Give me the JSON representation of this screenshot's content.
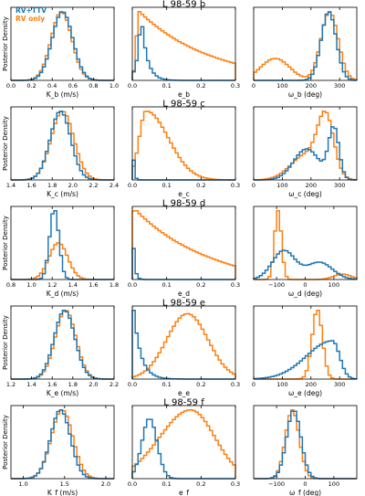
{
  "colors": {
    "rv_ttv": "#1f77b4",
    "rv_only": "#ff7f0e"
  },
  "legend": {
    "rv_ttv": "RV+TTV",
    "rv_only": "RV only"
  },
  "ylabel": "Posterior Density",
  "panel_titles": [
    "L 98-59 b",
    "L 98-59 c",
    "L 98-59 d",
    "L 98-59 e",
    "L 98-59 f"
  ],
  "chart_data": {
    "type": "histogram-grid",
    "legend_position": "top-left",
    "rows": [
      {
        "title": "L 98-59 b",
        "panels": [
          {
            "xlabel": "K_b (m/s)",
            "xlim": [
              0.0,
              1.0
            ],
            "xticks": [
              "0.0",
              "0.2",
              "0.4",
              "0.6",
              "0.8",
              "1.0"
            ],
            "xtick_values": [
              0.0,
              0.2,
              0.4,
              0.6,
              0.8,
              1.0
            ],
            "series": [
              {
                "name": "RV+TTV",
                "shape": "normal",
                "mu": 0.5,
                "sigma": 0.1
              },
              {
                "name": "RV only",
                "shape": "normal",
                "mu": 0.49,
                "sigma": 0.1
              }
            ]
          },
          {
            "xlabel": "e_b",
            "xlim": [
              0.0,
              0.3
            ],
            "xticks": [
              "0.0",
              "0.1",
              "0.2",
              "0.3"
            ],
            "xtick_values": [
              0.0,
              0.1,
              0.2,
              0.3
            ],
            "series": [
              {
                "name": "RV+TTV",
                "shape": "peak",
                "mode": 0.025,
                "left": 0.012,
                "right": 0.02
              },
              {
                "name": "RV only",
                "shape": "decay",
                "peak": 0.02,
                "rise": 0.008,
                "tail": 0.2,
                "floor": 0.05
              }
            ]
          },
          {
            "xlabel": "ω_b (deg)",
            "xlim": [
              0,
              360
            ],
            "xticks": [
              "0",
              "100",
              "200",
              "300"
            ],
            "xtick_values": [
              0,
              100,
              200,
              300
            ],
            "series": [
              {
                "name": "RV+TTV",
                "shape": "normal",
                "mu": 262,
                "sigma": 26
              },
              {
                "name": "RV only",
                "shape": "bimodal",
                "peaks": [
                  [
                    75,
                    50,
                    0.32
                  ],
                  [
                    265,
                    30,
                    1.0
                  ]
                ]
              }
            ]
          }
        ]
      },
      {
        "title": "L 98-59 c",
        "panels": [
          {
            "xlabel": "K_c (m/s)",
            "xlim": [
              1.4,
              2.4
            ],
            "xticks": [
              "1.4",
              "1.6",
              "1.8",
              "2.0",
              "2.2",
              "2.4"
            ],
            "xtick_values": [
              1.4,
              1.6,
              1.8,
              2.0,
              2.2,
              2.4
            ],
            "series": [
              {
                "name": "RV+TTV",
                "shape": "normal",
                "mu": 1.88,
                "sigma": 0.1
              },
              {
                "name": "RV only",
                "shape": "normal",
                "mu": 1.9,
                "sigma": 0.11
              }
            ]
          },
          {
            "xlabel": "e_c",
            "xlim": [
              0.0,
              0.3
            ],
            "xticks": [
              "0.0",
              "0.1",
              "0.2",
              "0.3"
            ],
            "xtick_values": [
              0.0,
              0.1,
              0.2,
              0.3
            ],
            "series": [
              {
                "name": "RV+TTV",
                "shape": "peak",
                "mode": 0.0,
                "left": 0.001,
                "right": 0.004
              },
              {
                "name": "RV only",
                "shape": "skew",
                "mode": 0.04,
                "left": 0.02,
                "right": 0.065
              }
            ]
          },
          {
            "xlabel": "ω_c (deg)",
            "xlim": [
              0,
              360
            ],
            "xticks": [
              "0",
              "100",
              "200",
              "300"
            ],
            "xtick_values": [
              0,
              100,
              200,
              300
            ],
            "series": [
              {
                "name": "RV+TTV",
                "shape": "bimodal",
                "peaks": [
                  [
                    185,
                    45,
                    0.55
                  ],
                  [
                    280,
                    18,
                    0.9
                  ]
                ]
              },
              {
                "name": "RV only",
                "shape": "bimodal",
                "peaks": [
                  [
                    185,
                    55,
                    0.45
                  ],
                  [
                    252,
                    28,
                    1.0
                  ]
                ]
              }
            ]
          }
        ]
      },
      {
        "title": "L 98-59 d",
        "panels": [
          {
            "xlabel": "K_d (m/s)",
            "xlim": [
              0.8,
              1.8
            ],
            "xticks": [
              "0.8",
              "1.0",
              "1.2",
              "1.4",
              "1.6",
              "1.8"
            ],
            "xtick_values": [
              0.8,
              1.0,
              1.2,
              1.4,
              1.6,
              1.8
            ],
            "series": [
              {
                "name": "RV+TTV",
                "shape": "normal",
                "mu": 1.22,
                "sigma": 0.045
              },
              {
                "name": "RV only",
                "shape": "normal",
                "mu": 1.26,
                "sigma": 0.09,
                "scale": 0.52
              }
            ]
          },
          {
            "xlabel": "e_d",
            "xlim": [
              0.0,
              0.3
            ],
            "xticks": [
              "0.0",
              "0.1",
              "0.2",
              "0.3"
            ],
            "xtick_values": [
              0.0,
              0.1,
              0.2,
              0.3
            ],
            "series": [
              {
                "name": "RV+TTV",
                "shape": "peak",
                "mode": 0.0,
                "left": 0.001,
                "right": 0.006
              },
              {
                "name": "RV only",
                "shape": "decay",
                "peak": 0.005,
                "rise": 0.003,
                "tail": 0.18,
                "floor": 0.18
              }
            ]
          },
          {
            "xlabel": "ω_d (deg)",
            "xlim": [
              -180,
              180
            ],
            "xticks": [
              "−100",
              "0",
              "100"
            ],
            "xtick_values": [
              -100,
              0,
              100
            ],
            "series": [
              {
                "name": "RV+TTV",
                "shape": "bimodal",
                "peaks": [
                  [
                    -75,
                    40,
                    0.42
                  ],
                  [
                    50,
                    45,
                    0.25
                  ]
                ]
              },
              {
                "name": "RV only",
                "shape": "bimodal",
                "peaks": [
                  [
                    -95,
                    12,
                    1.0
                  ],
                  [
                    130,
                    30,
                    0.08
                  ]
                ]
              }
            ]
          }
        ]
      },
      {
        "title": "L 98-59 e",
        "panels": [
          {
            "xlabel": "K_e (m/s)",
            "xlim": [
              1.2,
              2.2
            ],
            "xticks": [
              "1.2",
              "1.4",
              "1.6",
              "1.8",
              "2.0",
              "2.2"
            ],
            "xtick_values": [
              1.2,
              1.4,
              1.6,
              1.8,
              2.0,
              2.2
            ],
            "series": [
              {
                "name": "RV+TTV",
                "shape": "normal",
                "mu": 1.72,
                "sigma": 0.1
              },
              {
                "name": "RV only",
                "shape": "normal",
                "mu": 1.73,
                "sigma": 0.1
              }
            ]
          },
          {
            "xlabel": "e_e",
            "xlim": [
              0.0,
              0.3
            ],
            "xticks": [
              "0.0",
              "0.1",
              "0.2",
              "0.3"
            ],
            "xtick_values": [
              0.0,
              0.1,
              0.2,
              0.3
            ],
            "series": [
              {
                "name": "RV+TTV",
                "shape": "peak",
                "mode": 0.0,
                "left": 0.002,
                "right": 0.025
              },
              {
                "name": "RV only",
                "shape": "normal",
                "mu": 0.16,
                "sigma": 0.06,
                "scale": 0.78
              }
            ]
          },
          {
            "xlabel": "ω_e (deg)",
            "xlim": [
              0,
              360
            ],
            "xticks": [
              "0",
              "100",
              "200",
              "300"
            ],
            "xtick_values": [
              0,
              100,
              200,
              300
            ],
            "series": [
              {
                "name": "RV+TTV",
                "shape": "skew",
                "mode": 275,
                "left": 90,
                "right": 25,
                "scale": 0.55
              },
              {
                "name": "RV only",
                "shape": "normal",
                "mu": 222,
                "sigma": 18
              }
            ]
          }
        ]
      },
      {
        "title": "L 98-59 f",
        "panels": [
          {
            "xlabel": "K_f (m/s)",
            "xlim": [
              0.85,
              2.1
            ],
            "xticks": [
              "1.0",
              "1.5",
              "2.0"
            ],
            "xtick_values": [
              1.0,
              1.5,
              2.0
            ],
            "series": [
              {
                "name": "RV+TTV",
                "shape": "normal",
                "mu": 1.45,
                "sigma": 0.12
              },
              {
                "name": "RV only",
                "shape": "normal",
                "mu": 1.47,
                "sigma": 0.13
              }
            ]
          },
          {
            "xlabel": "e_f",
            "xlim": [
              0.0,
              0.3
            ],
            "xticks": [
              "0.0",
              "0.1",
              "0.2",
              "0.3"
            ],
            "xtick_values": [
              0.0,
              0.1,
              0.2,
              0.3
            ],
            "series": [
              {
                "name": "RV+TTV",
                "shape": "normal",
                "mu": 0.05,
                "sigma": 0.022,
                "scale": 0.72
              },
              {
                "name": "RV only",
                "shape": "skew",
                "mode": 0.17,
                "left": 0.09,
                "right": 0.07,
                "scale": 0.82
              }
            ]
          },
          {
            "xlabel": "ω_f (deg)",
            "xlim": [
              -180,
              180
            ],
            "xticks": [
              "−100",
              "0",
              "100"
            ],
            "xtick_values": [
              -100,
              0,
              100
            ],
            "series": [
              {
                "name": "RV+TTV",
                "shape": "normal",
                "mu": -40,
                "sigma": 25
              },
              {
                "name": "RV only",
                "shape": "normal",
                "mu": -45,
                "sigma": 24
              }
            ]
          }
        ]
      }
    ]
  }
}
